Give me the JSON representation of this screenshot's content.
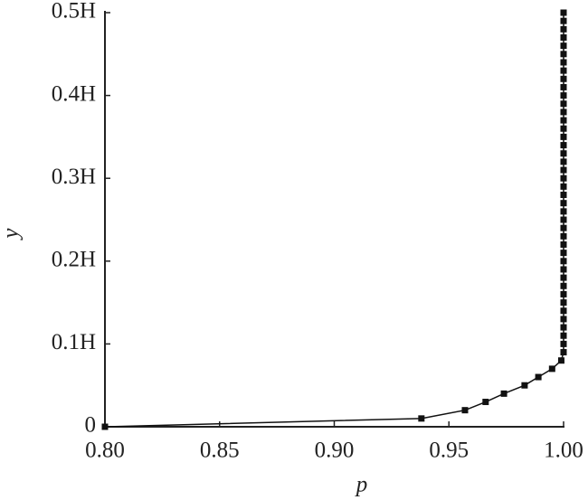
{
  "chart_data": {
    "type": "line",
    "xlabel": "p",
    "ylabel": "y",
    "x": [
      0.8,
      0.938,
      0.957,
      0.966,
      0.974,
      0.983,
      0.989,
      0.995,
      0.999,
      1.0,
      1.0,
      1.0,
      1.0,
      1.0,
      1.0,
      1.0,
      1.0,
      1.0,
      1.0,
      1.0,
      1.0,
      1.0,
      1.0,
      1.0,
      1.0,
      1.0,
      1.0,
      1.0,
      1.0,
      1.0,
      1.0,
      1.0,
      1.0,
      1.0,
      1.0,
      1.0,
      1.0,
      1.0,
      1.0,
      1.0,
      1.0,
      1.0,
      1.0,
      1.0,
      1.0,
      1.0,
      1.0,
      1.0,
      1.0,
      1.0,
      1.0
    ],
    "series": [
      {
        "color": "#111111",
        "values": [
          0,
          0.01,
          0.02,
          0.03,
          0.04,
          0.05,
          0.06,
          0.07,
          0.08,
          0.09,
          0.1,
          0.11,
          0.12,
          0.13,
          0.14,
          0.15,
          0.16,
          0.17,
          0.18,
          0.19,
          0.2,
          0.21,
          0.22,
          0.23,
          0.24,
          0.25,
          0.26,
          0.27,
          0.28,
          0.29,
          0.3,
          0.31,
          0.32,
          0.33,
          0.34,
          0.35,
          0.36,
          0.37,
          0.38,
          0.39,
          0.4,
          0.41,
          0.42,
          0.43,
          0.44,
          0.45,
          0.46,
          0.47,
          0.48,
          0.49,
          0.5
        ]
      }
    ],
    "xlim": [
      0.8,
      1.0
    ],
    "xticks": [
      {
        "value": 0.8,
        "label": "0.80"
      },
      {
        "value": 0.85,
        "label": "0.85"
      },
      {
        "value": 0.9,
        "label": "0.90"
      },
      {
        "value": 0.95,
        "label": "0.95"
      },
      {
        "value": 1.0,
        "label": "1.00"
      }
    ],
    "ylim": [
      0,
      0.5
    ],
    "yticks": [
      0,
      {
        "value": 0.1,
        "label": "0.1H"
      },
      {
        "value": 0.2,
        "label": "0.2H"
      },
      {
        "value": 0.3,
        "label": "0.3H"
      },
      {
        "value": 0.4,
        "label": "0.4H"
      },
      {
        "value": 0.5,
        "label": "0.5H"
      }
    ],
    "grid": false
  }
}
